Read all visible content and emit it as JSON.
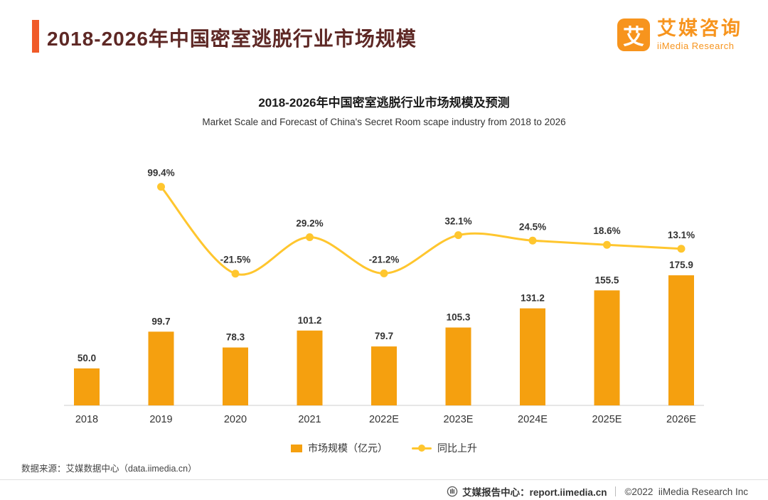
{
  "header": {
    "title": "2018-2026年中国密室逃脱行业市场规模",
    "logo": {
      "icon_char": "艾",
      "name_cn": "艾媒咨询",
      "name_en": "iiMedia Research"
    }
  },
  "chart_data": {
    "type": "combo",
    "title": "2018-2026年中国密室逃脱行业市场规模及预测",
    "subtitle": "Market Scale and Forecast of China's Secret Room scape industry from 2018 to 2026",
    "categories": [
      "2018",
      "2019",
      "2020",
      "2021",
      "2022E",
      "2023E",
      "2024E",
      "2025E",
      "2026E"
    ],
    "series": [
      {
        "name": "市场规模（亿元）",
        "type": "bar",
        "color": "#F5A00F",
        "values": [
          50.0,
          99.7,
          78.3,
          101.2,
          79.7,
          105.3,
          131.2,
          155.5,
          175.9
        ]
      },
      {
        "name": "同比上升",
        "type": "line",
        "color": "#FFC62E",
        "unit": "%",
        "values": [
          null,
          99.4,
          -21.5,
          29.2,
          -21.2,
          32.1,
          24.5,
          18.6,
          13.1
        ]
      }
    ],
    "xlabel": "",
    "ylabel": "",
    "grid": "off",
    "legend_position": "bottom"
  },
  "source": "数据来源：艾媒数据中心（data.iimedia.cn）",
  "footer": {
    "report_center": "艾媒报告中心：report.iimedia.cn",
    "copyright": "©2022  iiMedia Research Inc"
  },
  "colors": {
    "accent_orange": "#F05A28",
    "title_maroon": "#5E2825",
    "logo_orange": "#F7941D",
    "bar_orange": "#F5A00F",
    "line_yellow": "#FFC62E",
    "label_dark": "#333333",
    "axis_gray": "#cccccc"
  }
}
